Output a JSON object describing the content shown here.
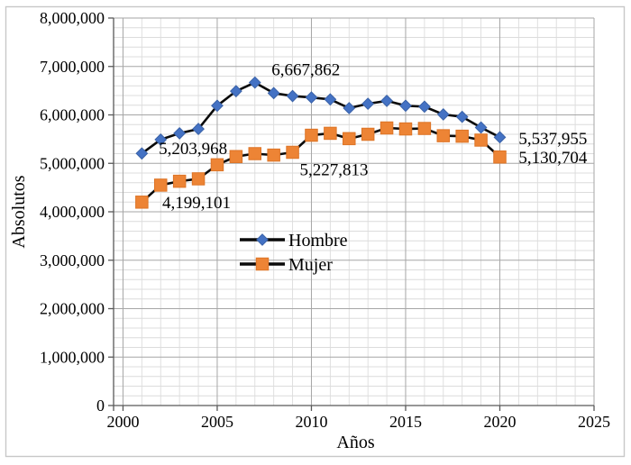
{
  "window": {
    "background": "#ffffff",
    "border_color": "#c8c8c8"
  },
  "colors": {
    "grid_minor": "#dcdcdc",
    "grid_major": "#a6a6a6",
    "axis": "#595959",
    "series_line": "#0a0a0a",
    "hombre_marker": "#4472C4",
    "hombre_marker_edge": "#3a62a7",
    "mujer_marker": "#ED8435",
    "mujer_marker_edge": "#dd7426",
    "text": "#000000"
  },
  "chart_data": {
    "type": "line",
    "xlabel": "Años",
    "ylabel": "Absolutos",
    "x": [
      2001,
      2002,
      2003,
      2004,
      2005,
      2006,
      2007,
      2008,
      2009,
      2010,
      2011,
      2012,
      2013,
      2014,
      2015,
      2016,
      2017,
      2018,
      2019,
      2020
    ],
    "series": [
      {
        "name": "Hombre",
        "marker": "diamond",
        "values": [
          5203968,
          5490000,
          5620000,
          5710000,
          6190000,
          6490000,
          6667862,
          6450000,
          6390000,
          6360000,
          6320000,
          6140000,
          6230000,
          6290000,
          6190000,
          6170000,
          6010000,
          5960000,
          5740000,
          5537955
        ]
      },
      {
        "name": "Mujer",
        "marker": "square",
        "values": [
          4199101,
          4550000,
          4630000,
          4680000,
          4970000,
          5140000,
          5200000,
          5170000,
          5227813,
          5580000,
          5620000,
          5510000,
          5600000,
          5730000,
          5710000,
          5720000,
          5570000,
          5560000,
          5480000,
          5130704
        ]
      }
    ],
    "xlim": [
      1999.5,
      2025
    ],
    "ylim": [
      0,
      8000000
    ],
    "x_major_ticks": [
      2000,
      2005,
      2010,
      2015,
      2020,
      2025
    ],
    "x_tick_labels": [
      "2000",
      "2005",
      "2010",
      "2015",
      "2020",
      "2025"
    ],
    "x_minor_step": 1,
    "y_major_step": 1000000,
    "y_minor_step": 200000,
    "y_tick_labels": [
      "0",
      "1,000,000",
      "2,000,000",
      "3,000,000",
      "4,000,000",
      "5,000,000",
      "6,000,000",
      "7,000,000",
      "8,000,000"
    ],
    "grid": true,
    "legend_position": "inside-center",
    "annotations": [
      {
        "text": "5,203,968",
        "x": 2001.9,
        "y": 5315000,
        "anchor": "start"
      },
      {
        "text": "6,667,862",
        "x": 2009.7,
        "y": 6940000,
        "anchor": "middle"
      },
      {
        "text": "5,227,813",
        "x": 2011.2,
        "y": 4870000,
        "anchor": "middle"
      },
      {
        "text": "4,199,101",
        "x": 2003.9,
        "y": 4200000,
        "anchor": "middle"
      },
      {
        "text": "5,537,955",
        "x": 2021.0,
        "y": 5515000,
        "anchor": "start"
      },
      {
        "text": "5,130,704",
        "x": 2021.0,
        "y": 5128000,
        "anchor": "start"
      }
    ]
  }
}
